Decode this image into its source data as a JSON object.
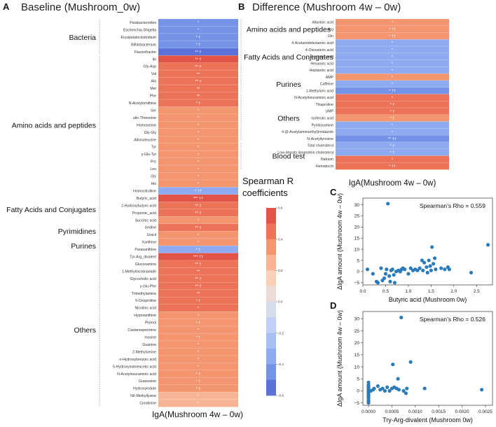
{
  "colors": {
    "scale": [
      "#e25448",
      "#ec7357",
      "#f3966f",
      "#f8b595",
      "#fad0b9",
      "#ebdcd7",
      "#d5dcea",
      "#bfcff6",
      "#a7bff3",
      "#8eaaf0",
      "#7593e6",
      "#5c72d8"
    ]
  },
  "panelA": {
    "letter": "A",
    "title": "Baseline (Mushroom_0w)",
    "xlabel": "IgA(Mushroom 4w – 0w)"
  },
  "panelB": {
    "letter": "B",
    "title": "Difference (Mushroom 4w – 0w)",
    "xlabel": "IgA(Mushroom 4w – 0w)"
  },
  "legend": {
    "title_line1": "Spearman R",
    "title_line2": "coefficients",
    "ticks": [
      "0.6",
      "0.4",
      "0.2",
      "0.0",
      "-0.2",
      "-0.4",
      "-0.6"
    ]
  },
  "chart_data": [
    {
      "id": "A",
      "type": "heatmap",
      "title": "Baseline (Mushroom_0w)",
      "xlabel": "IgA(Mushroom 4w – 0w)",
      "vmin": -0.6,
      "vmax": 0.6,
      "groups": [
        {
          "name": "Bacteria",
          "rows": [
            {
              "label": "Parabacteroides",
              "r": -0.45,
              "sig": "*"
            },
            {
              "label": "Escherichia-Shigella",
              "r": -0.48,
              "sig": "*"
            },
            {
              "label": "Erysipelatoclostridium",
              "r": -0.47,
              "sig": "* †"
            },
            {
              "label": "Bifidobacterium",
              "r": -0.46,
              "sig": "* †"
            },
            {
              "label": "Flavonifractor",
              "r": -0.5,
              "sig": "** †"
            }
          ]
        },
        {
          "name": "Amino acids and peptides",
          "rows": [
            {
              "label": "Ile",
              "r": 0.58,
              "sig": "** †"
            },
            {
              "label": "Gly-Asp",
              "r": 0.45,
              "sig": "** †"
            },
            {
              "label": "Val",
              "r": 0.45,
              "sig": "**"
            },
            {
              "label": "Ala",
              "r": 0.44,
              "sig": "** †"
            },
            {
              "label": "Met",
              "r": 0.44,
              "sig": "**"
            },
            {
              "label": "Phe",
              "r": 0.43,
              "sig": "**"
            },
            {
              "label": "N-Acetylornithine",
              "r": 0.42,
              "sig": "* †"
            },
            {
              "label": "Ser",
              "r": 0.38,
              "sig": "*"
            },
            {
              "label": "allo-Threonine",
              "r": 0.37,
              "sig": "*"
            },
            {
              "label": "Homoserine",
              "r": 0.36,
              "sig": "*"
            },
            {
              "label": "Gly-Gly",
              "r": 0.36,
              "sig": "*"
            },
            {
              "label": "Alloisoleucine",
              "r": 0.35,
              "sig": "*"
            },
            {
              "label": "Tyr",
              "r": 0.33,
              "sig": "*"
            },
            {
              "label": "γ-Glu-Tyr",
              "r": 0.33,
              "sig": "*"
            },
            {
              "label": "Pro",
              "r": 0.32,
              "sig": "*"
            },
            {
              "label": "Leu",
              "r": 0.32,
              "sig": "*"
            },
            {
              "label": "Gly",
              "r": 0.31,
              "sig": "*"
            },
            {
              "label": "His",
              "r": 0.31,
              "sig": "*"
            },
            {
              "label": "Homocitrulline",
              "r": -0.36,
              "sig": "* ††"
            }
          ]
        },
        {
          "name": "Fatty Acids and Conjugates",
          "rows": [
            {
              "label": "Butyric_acid",
              "r": 0.58,
              "sig": "*** ††"
            },
            {
              "label": "2-Hydroxybutyric acid",
              "r": 0.45,
              "sig": "** †"
            },
            {
              "label": "Propionic_acid",
              "r": 0.44,
              "sig": "** †"
            },
            {
              "label": "Succinic acid",
              "r": 0.31,
              "sig": "*"
            }
          ]
        },
        {
          "name": "Pyrimidines",
          "rows": [
            {
              "label": "Uridine",
              "r": 0.44,
              "sig": "** †"
            },
            {
              "label": "Uracil",
              "r": 0.31,
              "sig": "*"
            }
          ]
        },
        {
          "name": "Purines",
          "rows": [
            {
              "label": "Xanthine",
              "r": 0.31,
              "sig": "*"
            },
            {
              "label": "Paraxanthine",
              "r": -0.36,
              "sig": "* †"
            }
          ]
        },
        {
          "name": "Others",
          "rows": [
            {
              "label": "Tyr-Arg_divalent",
              "r": 0.58,
              "sig": "*** ††"
            },
            {
              "label": "Glucosamine",
              "r": 0.45,
              "sig": "** †"
            },
            {
              "label": "1-Methylnicotinamide",
              "r": 0.44,
              "sig": "**"
            },
            {
              "label": "Glycocholic acid",
              "r": 0.44,
              "sig": "** †"
            },
            {
              "label": "γ-Glu-Phe",
              "r": 0.43,
              "sig": "** †"
            },
            {
              "label": "Trimethylamine",
              "r": 0.43,
              "sig": "**"
            },
            {
              "label": "5-Oxoproline",
              "r": 0.42,
              "sig": "* †"
            },
            {
              "label": "Nicotinic acid",
              "r": 0.4,
              "sig": "*"
            },
            {
              "label": "Hypoxanthine",
              "r": 0.39,
              "sig": "*"
            },
            {
              "label": "Phenol",
              "r": 0.33,
              "sig": "* †"
            },
            {
              "label": "Castanospermine",
              "r": 0.33,
              "sig": "*"
            },
            {
              "label": "Inosine",
              "r": 0.32,
              "sig": "* †"
            },
            {
              "label": "Guanine",
              "r": 0.32,
              "sig": "*"
            },
            {
              "label": "2-Methylserine",
              "r": 0.32,
              "sig": "*"
            },
            {
              "label": "o-Hydroxybenzoic acid",
              "r": 0.31,
              "sig": "*"
            },
            {
              "label": "5-Hydroxyindoleacetic acid",
              "r": 0.31,
              "sig": "*"
            },
            {
              "label": "N-Acetylneuraminic acid",
              "r": 0.31,
              "sig": "* †"
            },
            {
              "label": "Guanosine",
              "r": 0.31,
              "sig": "* †"
            },
            {
              "label": "Hydroxyindole",
              "r": 0.31,
              "sig": "* †"
            },
            {
              "label": "N6-Methyllysine",
              "r": 0.3,
              "sig": "*"
            },
            {
              "label": "Creatinine",
              "r": 0.3,
              "sig": "*"
            }
          ]
        }
      ]
    },
    {
      "id": "B",
      "type": "heatmap",
      "title": "Difference (Mushroom 4w – 0w)",
      "xlabel": "IgA(Mushroom 4w – 0w)",
      "vmin": -0.6,
      "vmax": 0.6,
      "groups": [
        {
          "name": "Amino acids and peptides",
          "rows": [
            {
              "label": "Allantoic acid",
              "r": 0.32,
              "sig": "*"
            },
            {
              "label": "Arg",
              "r": 0.33,
              "sig": "* ††"
            },
            {
              "label": "Gln",
              "r": 0.33,
              "sig": "* ††"
            }
          ]
        },
        {
          "name": "Fatty Acids and Conjugates",
          "rows": [
            {
              "label": "4-Acetamidobutanoic acid",
              "r": -0.32,
              "sig": "*"
            },
            {
              "label": "4-Oxovaleric acid",
              "r": -0.32,
              "sig": "*"
            },
            {
              "label": "Decanoic acid",
              "r": -0.32,
              "sig": "*"
            },
            {
              "label": "Hexanoic acid",
              "r": -0.32,
              "sig": "*"
            },
            {
              "label": "Heptanoic acid",
              "r": -0.32,
              "sig": "*"
            }
          ]
        },
        {
          "name": "Purines",
          "rows": [
            {
              "label": "AMP",
              "r": 0.32,
              "sig": "*"
            },
            {
              "label": "Caffeine",
              "r": -0.33,
              "sig": "*"
            },
            {
              "label": "1-Methyluric acid",
              "r": -0.47,
              "sig": "* ††"
            }
          ]
        },
        {
          "name": "Others",
          "rows": [
            {
              "label": "N-Acetylneuraminic acid",
              "r": 0.4,
              "sig": "*"
            },
            {
              "label": "Thiaproline",
              "r": 0.42,
              "sig": "* †"
            },
            {
              "label": "UMP",
              "r": 0.44,
              "sig": "* †"
            },
            {
              "label": "Isoferulic acid",
              "r": 0.32,
              "sig": "* †"
            },
            {
              "label": "Pyridoxamine",
              "r": -0.32,
              "sig": "*"
            },
            {
              "label": "4-(β-Acetylaminoethyl)imidazole",
              "r": -0.32,
              "sig": "*"
            },
            {
              "label": "N-Acetyltyrosine",
              "r": -0.49,
              "sig": "** ††"
            }
          ]
        },
        {
          "name": "Blood test",
          "rows": [
            {
              "label": "Total cholesterol",
              "r": -0.33,
              "sig": "* †"
            },
            {
              "label": "Low-density lipoprotein cholesterol",
              "r": -0.33,
              "sig": "* †"
            },
            {
              "label": "Natrium",
              "r": 0.42,
              "sig": "*"
            },
            {
              "label": "Hematocrit",
              "r": 0.42,
              "sig": "* ††"
            }
          ]
        }
      ]
    },
    {
      "id": "C",
      "type": "scatter",
      "letter": "C",
      "xlabel": "Butyric acid (Mushroom 0w)",
      "ylabel": "ΔIgA amount (Mushroom 4w – 0w)",
      "annotation": "Spearman’s Rho = 0.559",
      "xlim": [
        0,
        2.85
      ],
      "ylim": [
        -6,
        33
      ],
      "xticks": [
        0.0,
        0.5,
        1.0,
        1.5,
        2.0,
        2.5
      ],
      "xtick_labels": [
        "0.0",
        "0.5",
        "1.0",
        "1.5",
        "2.0",
        "2.5"
      ],
      "yticks": [
        -5,
        0,
        5,
        10,
        15,
        20,
        25,
        30
      ],
      "ytick_labels": [
        "−5",
        "0",
        "5",
        "10",
        "15",
        "20",
        "25",
        "30"
      ],
      "points": [
        [
          0.1,
          1
        ],
        [
          0.22,
          -1
        ],
        [
          0.3,
          -4.5
        ],
        [
          0.33,
          -5
        ],
        [
          0.4,
          1.5
        ],
        [
          0.43,
          -4
        ],
        [
          0.47,
          -3
        ],
        [
          0.5,
          -1
        ],
        [
          0.52,
          1
        ],
        [
          0.55,
          30.5
        ],
        [
          0.58,
          -2
        ],
        [
          0.6,
          -4.5
        ],
        [
          0.62,
          0.5
        ],
        [
          0.65,
          1
        ],
        [
          0.68,
          -1.5
        ],
        [
          0.7,
          -5
        ],
        [
          0.73,
          0
        ],
        [
          0.78,
          0.5
        ],
        [
          0.82,
          0
        ],
        [
          0.85,
          1
        ],
        [
          0.88,
          1.5
        ],
        [
          0.92,
          1
        ],
        [
          1.0,
          -1
        ],
        [
          1.05,
          1.5
        ],
        [
          1.1,
          0.5
        ],
        [
          1.15,
          1
        ],
        [
          1.2,
          0.5
        ],
        [
          1.25,
          1.5
        ],
        [
          1.3,
          5
        ],
        [
          1.32,
          0.5
        ],
        [
          1.35,
          4
        ],
        [
          1.4,
          2
        ],
        [
          1.42,
          -0.5
        ],
        [
          1.45,
          5
        ],
        [
          1.48,
          2.5
        ],
        [
          1.5,
          0.5
        ],
        [
          1.52,
          11
        ],
        [
          1.55,
          3.5
        ],
        [
          1.58,
          6
        ],
        [
          1.6,
          1
        ],
        [
          1.72,
          1.5
        ],
        [
          1.8,
          1
        ],
        [
          1.87,
          2
        ],
        [
          1.9,
          1
        ],
        [
          2.38,
          -0.5
        ],
        [
          2.75,
          12
        ]
      ]
    },
    {
      "id": "D",
      "type": "scatter",
      "letter": "D",
      "xlabel": "Try-Arg-divalent (Mushroom 0w)",
      "ylabel": "ΔIgA amount (Mushroom 4w – 0w)",
      "annotation": "Spearman’s Rho = 0.526",
      "xlim": [
        -0.00012,
        0.00265
      ],
      "ylim": [
        -6,
        33
      ],
      "xticks": [
        0.0,
        0.0005,
        0.001,
        0.0015,
        0.002,
        0.0025
      ],
      "xtick_labels": [
        "0.0000",
        "0.0005",
        "0.0010",
        "0.0015",
        "0.0020",
        "0.0025"
      ],
      "yticks": [
        -5,
        0,
        5,
        10,
        15,
        20,
        25,
        30
      ],
      "ytick_labels": [
        "−5",
        "0",
        "5",
        "10",
        "15",
        "20",
        "25",
        "30"
      ],
      "points": [
        [
          0,
          -5
        ],
        [
          0,
          -4.5
        ],
        [
          0,
          -4
        ],
        [
          0,
          -3
        ],
        [
          0,
          -2.5
        ],
        [
          0,
          -2
        ],
        [
          0,
          -1.5
        ],
        [
          0,
          -1
        ],
        [
          0,
          -0.5
        ],
        [
          0,
          0
        ],
        [
          0,
          0.5
        ],
        [
          0,
          1
        ],
        [
          0,
          1.5
        ],
        [
          0,
          2
        ],
        [
          0,
          2.5
        ],
        [
          0,
          3.5
        ],
        [
          5e-05,
          0
        ],
        [
          0.0001,
          0.5
        ],
        [
          0.00012,
          1
        ],
        [
          0.0002,
          2
        ],
        [
          0.00025,
          0.5
        ],
        [
          0.0003,
          1
        ],
        [
          0.00035,
          0
        ],
        [
          0.0004,
          1.5
        ],
        [
          0.00045,
          0
        ],
        [
          0.0005,
          1
        ],
        [
          0.00052,
          11
        ],
        [
          0.00055,
          1.5
        ],
        [
          0.0006,
          1
        ],
        [
          0.00063,
          5
        ],
        [
          0.00065,
          0.5
        ],
        [
          0.0007,
          30.5
        ],
        [
          0.00075,
          0
        ],
        [
          0.0008,
          -1
        ],
        [
          0.00082,
          1
        ],
        [
          0.0009,
          12
        ],
        [
          0.0012,
          1
        ],
        [
          0.00242,
          0.5
        ]
      ]
    }
  ]
}
